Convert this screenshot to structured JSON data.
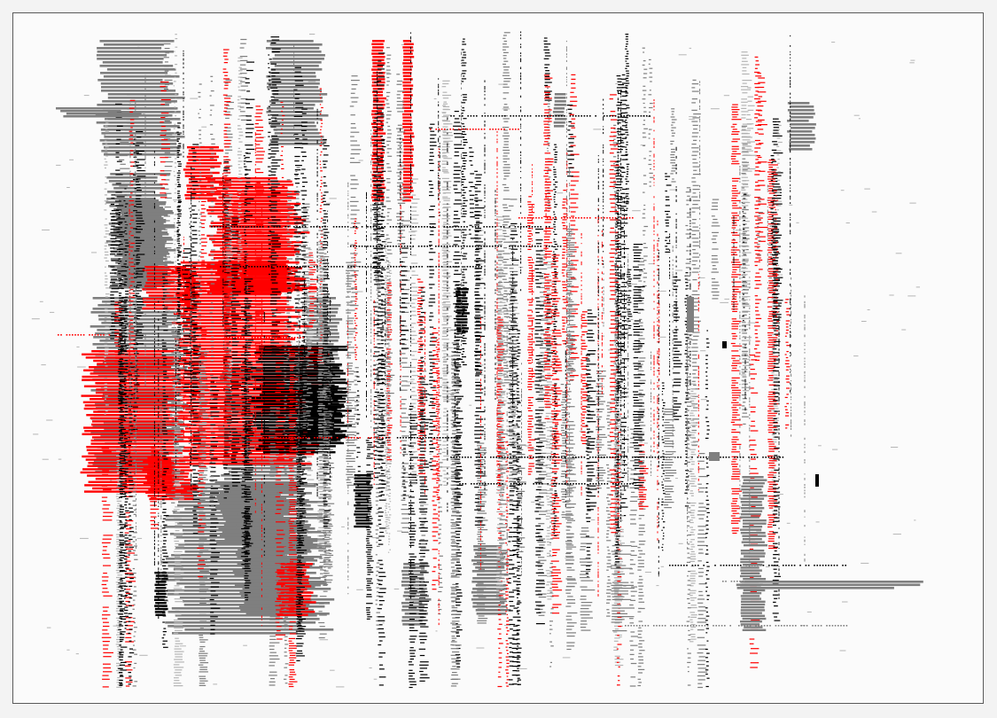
{
  "artwork": {
    "palette": {
      "background": "#fbfbfb",
      "frame": "#5a5a5a",
      "red": "#ff0000",
      "gray": "#7f7f7f",
      "black": "#000000",
      "light_gray": "#b5b5b5"
    }
  }
}
